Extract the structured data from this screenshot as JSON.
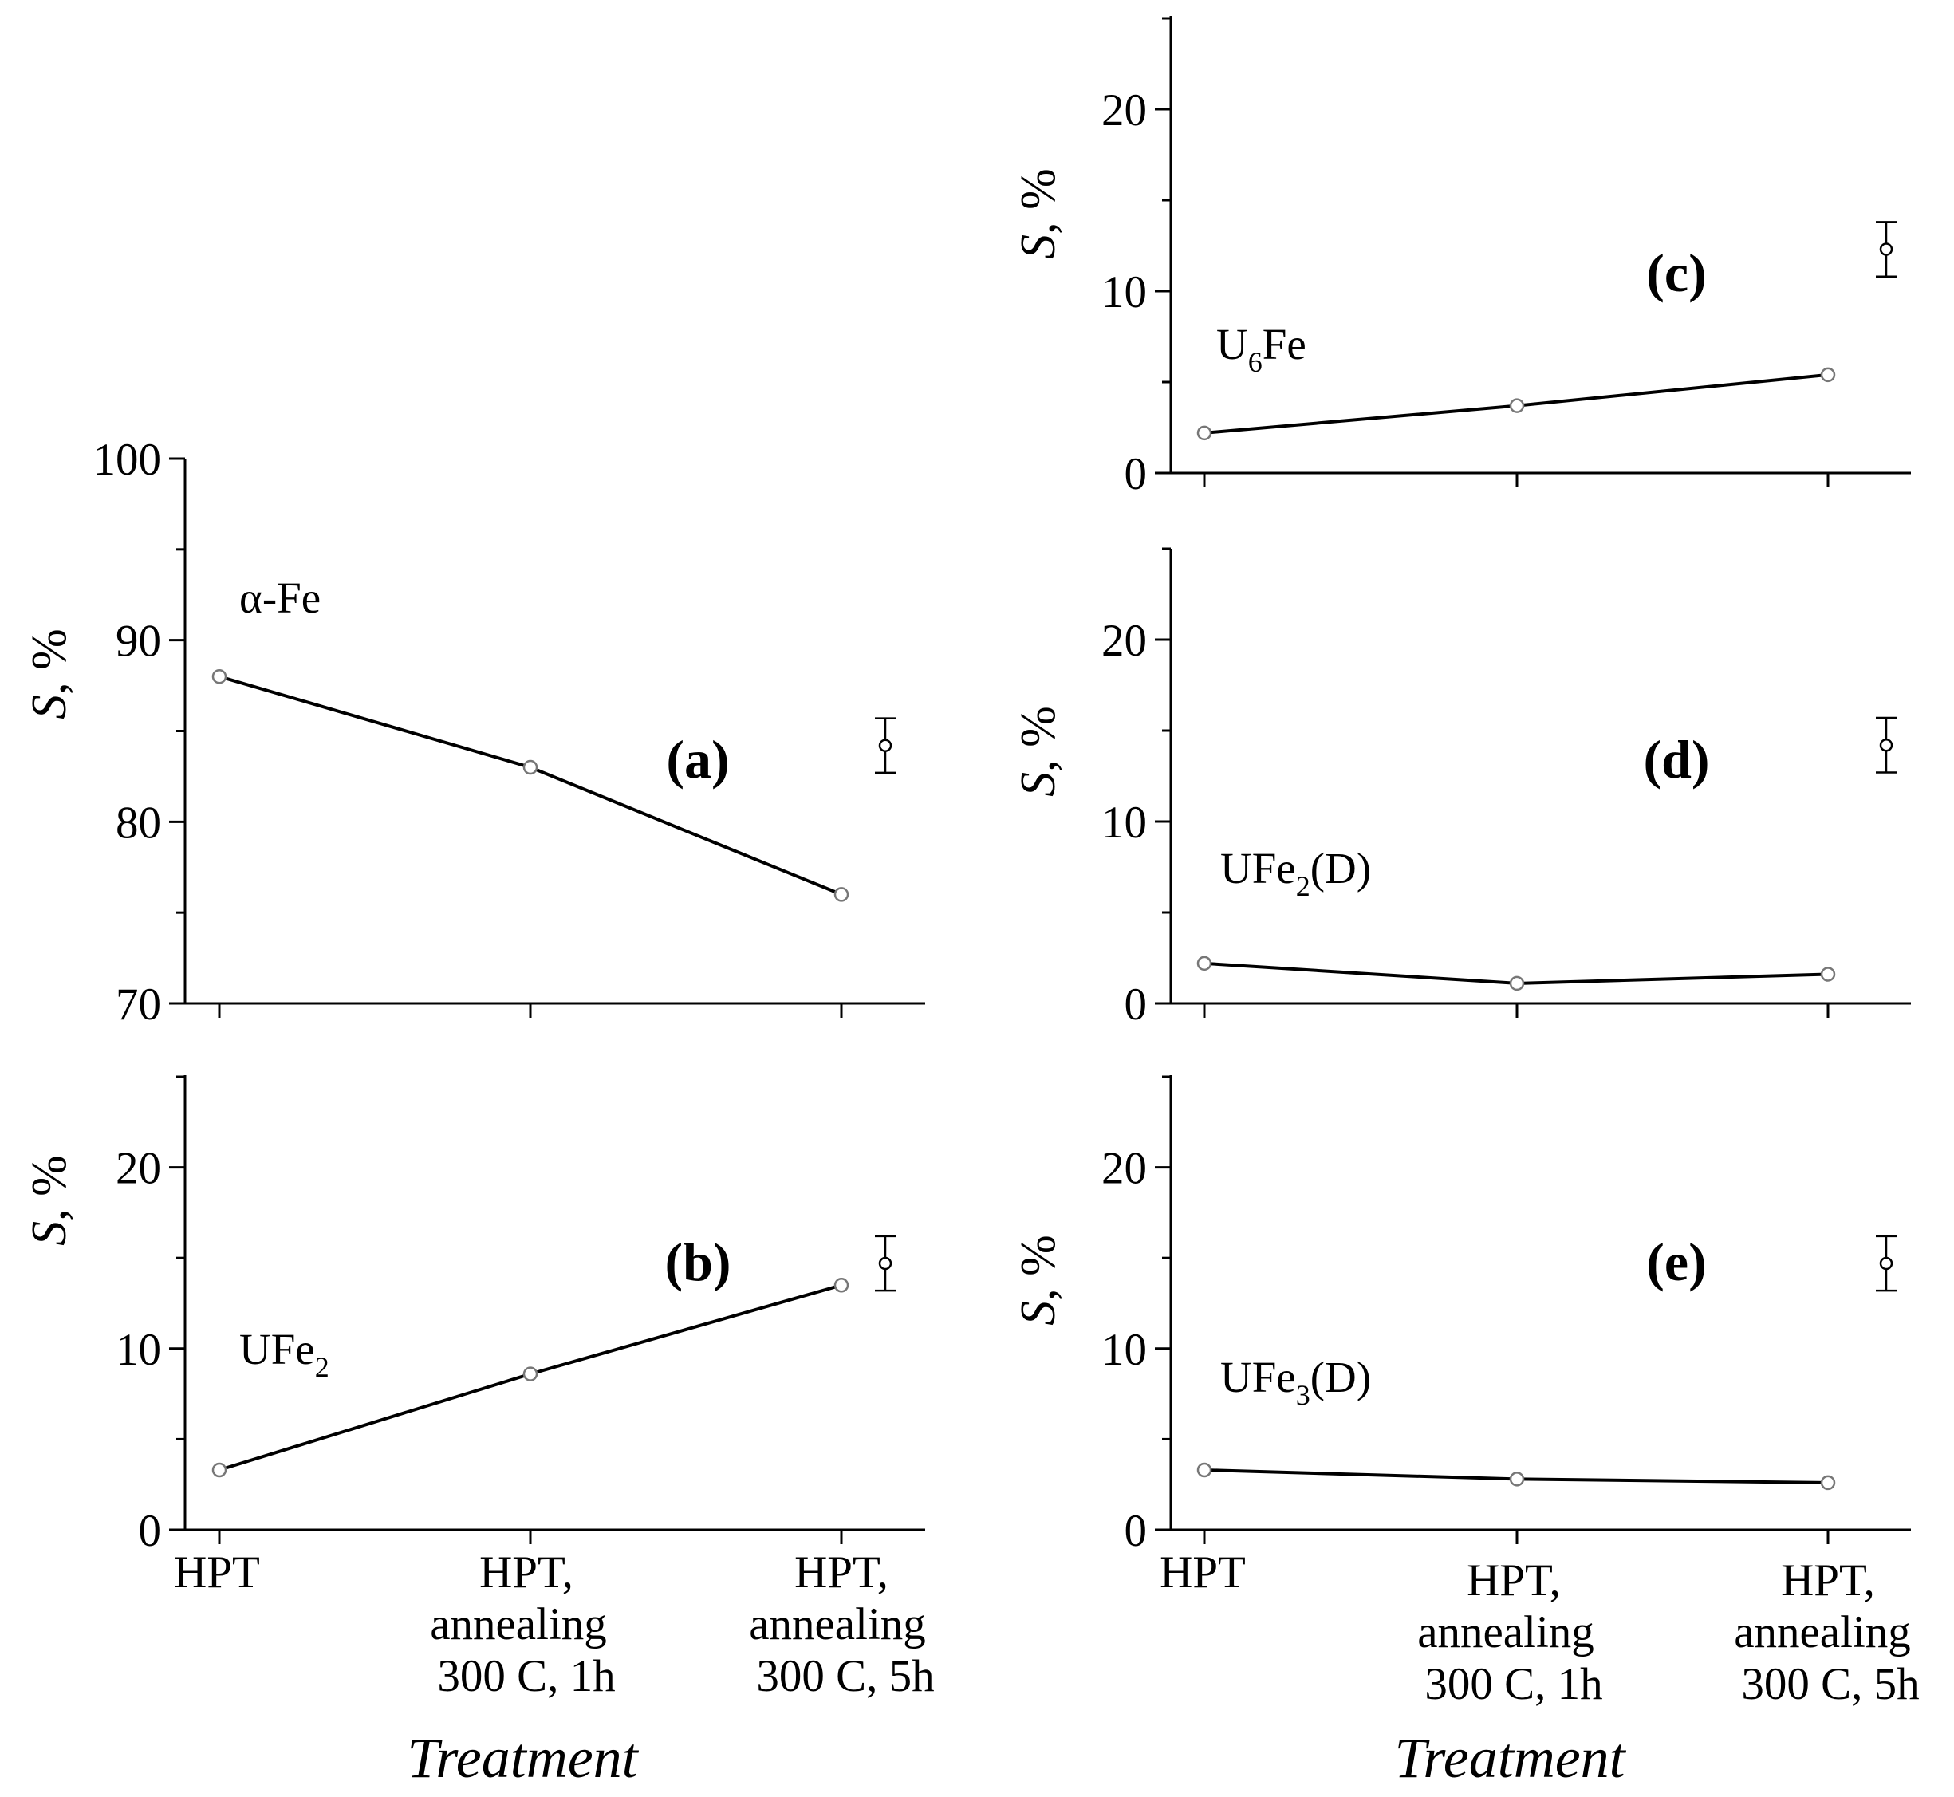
{
  "chart_data": [
    {
      "type": "line",
      "panel": "(a)",
      "series": [
        {
          "name": "α-Fe",
          "values": [
            88.0,
            83.0,
            76.0
          ]
        }
      ],
      "categories": [
        "HPT",
        "HPT, annealing 300 C, 1h",
        "HPT, annealing 300 C, 5h"
      ],
      "ylabel": "S, %",
      "ylim": [
        70,
        100
      ],
      "yticks": [
        "70",
        "80",
        "90",
        "100"
      ],
      "error_bar": {
        "center": 84.2,
        "halfwidth": 1.5
      }
    },
    {
      "type": "line",
      "panel": "(b)",
      "series": [
        {
          "name": "UFe2",
          "values": [
            3.3,
            8.6,
            13.5
          ]
        }
      ],
      "categories": [
        "HPT",
        "HPT, annealing 300 C, 1h",
        "HPT, annealing 300 C, 5h"
      ],
      "ylabel": "S, %",
      "xlabel": "Treatment",
      "ylim": [
        0,
        25
      ],
      "yticks": [
        "0",
        "10",
        "20"
      ],
      "error_bar": {
        "center": 14.7,
        "halfwidth": 1.5
      }
    },
    {
      "type": "line",
      "panel": "(c)",
      "series": [
        {
          "name": "U6Fe",
          "values": [
            2.2,
            3.7,
            5.4
          ]
        }
      ],
      "categories": [
        "HPT",
        "HPT, annealing 300 C, 1h",
        "HPT, annealing 300 C, 5h"
      ],
      "ylabel": "S, %",
      "ylim": [
        0,
        25
      ],
      "yticks": [
        "0",
        "10",
        "20"
      ],
      "error_bar": {
        "center": 12.3,
        "halfwidth": 1.5
      }
    },
    {
      "type": "line",
      "panel": "(d)",
      "series": [
        {
          "name": "UFe2(D)",
          "values": [
            2.2,
            1.1,
            1.6
          ]
        }
      ],
      "categories": [
        "HPT",
        "HPT, annealing 300 C, 1h",
        "HPT, annealing 300 C, 5h"
      ],
      "ylabel": "S, %",
      "ylim": [
        0,
        25
      ],
      "yticks": [
        "0",
        "10",
        "20"
      ],
      "error_bar": {
        "center": 14.2,
        "halfwidth": 1.5
      }
    },
    {
      "type": "line",
      "panel": "(e)",
      "series": [
        {
          "name": "UFe3(D)",
          "values": [
            3.3,
            2.8,
            2.6
          ]
        }
      ],
      "categories": [
        "HPT",
        "HPT, annealing 300 C, 1h",
        "HPT, annealing 300 C, 5h"
      ],
      "ylabel": "S, %",
      "xlabel": "Treatment",
      "ylim": [
        0,
        25
      ],
      "yticks": [
        "0",
        "10",
        "20"
      ],
      "error_bar": {
        "center": 14.7,
        "halfwidth": 1.5
      }
    }
  ],
  "labels": {
    "ylabel_symbol": "S",
    "ylabel_unit": ", %",
    "panel_a": "(a)",
    "panel_b": "(b)",
    "panel_c": "(c)",
    "panel_d": "(d)",
    "panel_e": "(e)",
    "alpha_fe": "α-Fe",
    "ufe2_base": "UFe",
    "ufe2_sub": "2",
    "u6fe_u": "U",
    "u6fe_sub": "6",
    "u6fe_fe": "Fe",
    "ufe2d_base": "UFe",
    "ufe2d_sub": "2",
    "ufe2d_suffix": "(D)",
    "ufe3d_base": "UFe",
    "ufe3d_sub": "3",
    "ufe3d_suffix": "(D)",
    "xcat_1": "HPT",
    "xcat_2_line1": "HPT,",
    "xcat_2_line2": "annealing",
    "xcat_2_line3": "300 C, 1h",
    "xcat_3_line1": "HPT,",
    "xcat_3_line2": "annealing",
    "xcat_3_line3": "300 C, 5h",
    "xlabel": "Treatment"
  }
}
